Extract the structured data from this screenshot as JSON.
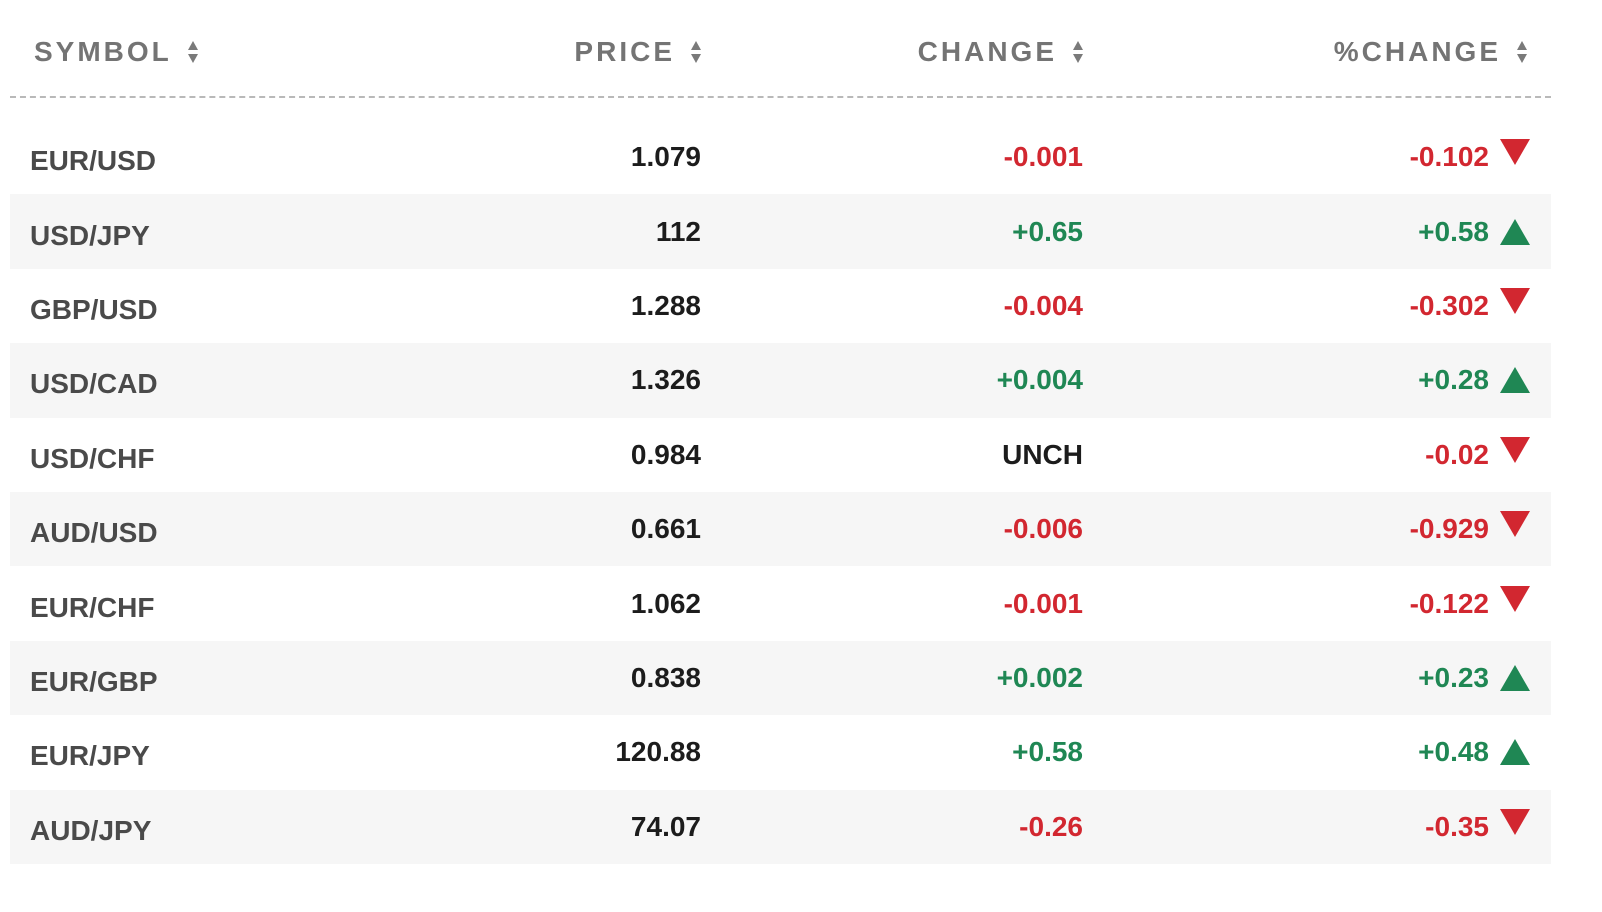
{
  "columns": {
    "symbol": "SYMBOL",
    "price": "PRICE",
    "change": "CHANGE",
    "pct_change": "%CHANGE"
  },
  "colors": {
    "positive": "#1f8754",
    "negative": "#d22730",
    "header_text": "#747474",
    "alt_row_bg": "#f6f6f6"
  },
  "rows": [
    {
      "symbol": "EUR/USD",
      "price": "1.079",
      "change": "-0.001",
      "pct_change": "-0.102",
      "direction": "down",
      "change_dir": "down"
    },
    {
      "symbol": "USD/JPY",
      "price": "112",
      "change": "+0.65",
      "pct_change": "+0.58",
      "direction": "up",
      "change_dir": "up"
    },
    {
      "symbol": "GBP/USD",
      "price": "1.288",
      "change": "-0.004",
      "pct_change": "-0.302",
      "direction": "down",
      "change_dir": "down"
    },
    {
      "symbol": "USD/CAD",
      "price": "1.326",
      "change": "+0.004",
      "pct_change": "+0.28",
      "direction": "up",
      "change_dir": "up"
    },
    {
      "symbol": "USD/CHF",
      "price": "0.984",
      "change": "UNCH",
      "pct_change": "-0.02",
      "direction": "down",
      "change_dir": "unch"
    },
    {
      "symbol": "AUD/USD",
      "price": "0.661",
      "change": "-0.006",
      "pct_change": "-0.929",
      "direction": "down",
      "change_dir": "down"
    },
    {
      "symbol": "EUR/CHF",
      "price": "1.062",
      "change": "-0.001",
      "pct_change": "-0.122",
      "direction": "down",
      "change_dir": "down"
    },
    {
      "symbol": "EUR/GBP",
      "price": "0.838",
      "change": "+0.002",
      "pct_change": "+0.23",
      "direction": "up",
      "change_dir": "up"
    },
    {
      "symbol": "EUR/JPY",
      "price": "120.88",
      "change": "+0.58",
      "pct_change": "+0.48",
      "direction": "up",
      "change_dir": "up"
    },
    {
      "symbol": "AUD/JPY",
      "price": "74.07",
      "change": "-0.26",
      "pct_change": "-0.35",
      "direction": "down",
      "change_dir": "down"
    }
  ]
}
